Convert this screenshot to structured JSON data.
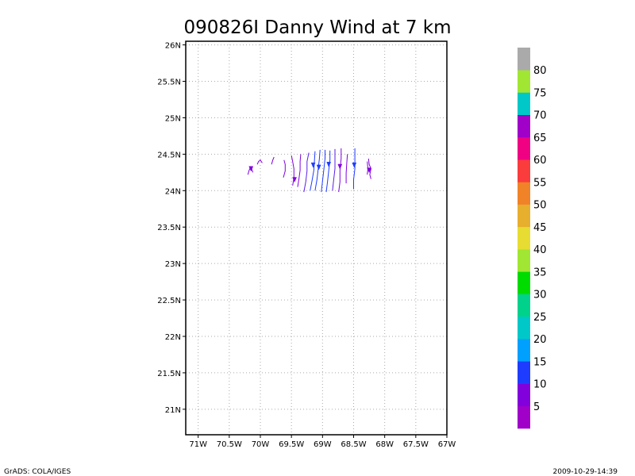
{
  "chart_data": {
    "type": "streamline",
    "title": "090826I Danny Wind at 7 km",
    "xlabel": "",
    "ylabel": "",
    "xlim": [
      -71.2,
      -67.0
    ],
    "ylim": [
      20.65,
      26.05
    ],
    "x_ticks": [
      {
        "value": -71.0,
        "label": "71W"
      },
      {
        "value": -70.5,
        "label": "70.5W"
      },
      {
        "value": -70.0,
        "label": "70W"
      },
      {
        "value": -69.5,
        "label": "69.5W"
      },
      {
        "value": -69.0,
        "label": "69W"
      },
      {
        "value": -68.5,
        "label": "68.5W"
      },
      {
        "value": -68.0,
        "label": "68W"
      },
      {
        "value": -67.5,
        "label": "67.5W"
      },
      {
        "value": -67.0,
        "label": "67W"
      }
    ],
    "y_ticks": [
      {
        "value": 21.0,
        "label": "21N"
      },
      {
        "value": 21.5,
        "label": "21.5N"
      },
      {
        "value": 22.0,
        "label": "22N"
      },
      {
        "value": 22.5,
        "label": "22.5N"
      },
      {
        "value": 23.0,
        "label": "23N"
      },
      {
        "value": 23.5,
        "label": "23.5N"
      },
      {
        "value": 24.0,
        "label": "24N"
      },
      {
        "value": 24.5,
        "label": "24.5N"
      },
      {
        "value": 25.0,
        "label": "25N"
      },
      {
        "value": 25.5,
        "label": "25.5N"
      },
      {
        "value": 26.0,
        "label": "26N"
      }
    ],
    "grid": true,
    "colorbar": {
      "bins": [
        {
          "color": "#a000c8",
          "label": "5"
        },
        {
          "color": "#8200dc",
          "label": "10"
        },
        {
          "color": "#1e3cff",
          "label": "15"
        },
        {
          "color": "#00a0ff",
          "label": "20"
        },
        {
          "color": "#00c8c8",
          "label": "25"
        },
        {
          "color": "#00d28c",
          "label": "30"
        },
        {
          "color": "#00dc00",
          "label": "35"
        },
        {
          "color": "#a0e632",
          "label": "40"
        },
        {
          "color": "#e6dc32",
          "label": "45"
        },
        {
          "color": "#e6af2d",
          "label": "50"
        },
        {
          "color": "#f08228",
          "label": "55"
        },
        {
          "color": "#fa3c3c",
          "label": "60"
        },
        {
          "color": "#f00082",
          "label": "65"
        },
        {
          "color": "#a000c8",
          "label": "70"
        },
        {
          "color": "#00c8c8",
          "label": "75"
        },
        {
          "color": "#a0e632",
          "label": "80"
        },
        {
          "color": "#aaaaaa",
          "label": ""
        }
      ]
    },
    "streamlines": [
      {
        "color": "#8200dc",
        "points": [
          [
            -70.12,
            24.25
          ],
          [
            -70.14,
            24.3
          ],
          [
            -70.16,
            24.32
          ],
          [
            -70.18,
            24.28
          ],
          [
            -70.2,
            24.22
          ]
        ]
      },
      {
        "color": "#8200dc",
        "points": [
          [
            -70.05,
            24.36
          ],
          [
            -70.03,
            24.4
          ],
          [
            -70.0,
            24.42
          ],
          [
            -69.97,
            24.38
          ]
        ]
      },
      {
        "color": "#8200dc",
        "points": [
          [
            -69.82,
            24.36
          ],
          [
            -69.8,
            24.42
          ],
          [
            -69.78,
            24.46
          ]
        ]
      },
      {
        "color": "#8200dc",
        "points": [
          [
            -69.62,
            24.42
          ],
          [
            -69.6,
            24.36
          ],
          [
            -69.6,
            24.27
          ],
          [
            -69.63,
            24.18
          ]
        ]
      },
      {
        "color": "#8200dc",
        "points": [
          [
            -69.5,
            24.48
          ],
          [
            -69.48,
            24.4
          ],
          [
            -69.46,
            24.3
          ],
          [
            -69.46,
            24.18
          ],
          [
            -69.48,
            24.07
          ]
        ]
      },
      {
        "color": "#8200dc",
        "points": [
          [
            -69.35,
            24.5
          ],
          [
            -69.36,
            24.4
          ],
          [
            -69.36,
            24.28
          ],
          [
            -69.38,
            24.16
          ],
          [
            -69.4,
            24.05
          ]
        ]
      },
      {
        "color": "#5a1ee6",
        "points": [
          [
            -69.22,
            24.52
          ],
          [
            -69.25,
            24.4
          ],
          [
            -69.25,
            24.27
          ],
          [
            -69.27,
            24.12
          ],
          [
            -69.3,
            23.98
          ]
        ]
      },
      {
        "color": "#1e3cff",
        "points": [
          [
            -69.12,
            24.54
          ],
          [
            -69.13,
            24.42
          ],
          [
            -69.14,
            24.28
          ],
          [
            -69.17,
            24.13
          ],
          [
            -69.2,
            24.0
          ]
        ]
      },
      {
        "color": "#1e3cff",
        "points": [
          [
            -69.04,
            24.56
          ],
          [
            -69.05,
            24.44
          ],
          [
            -69.07,
            24.3
          ],
          [
            -69.09,
            24.15
          ],
          [
            -69.12,
            24.0
          ]
        ]
      },
      {
        "color": "#1e3cff",
        "points": [
          [
            -68.96,
            24.56
          ],
          [
            -68.96,
            24.44
          ],
          [
            -68.98,
            24.28
          ],
          [
            -69.0,
            24.13
          ],
          [
            -69.02,
            23.98
          ]
        ]
      },
      {
        "color": "#1e3cff",
        "points": [
          [
            -68.88,
            24.55
          ],
          [
            -68.88,
            24.42
          ],
          [
            -68.9,
            24.28
          ],
          [
            -68.92,
            24.12
          ],
          [
            -68.94,
            23.98
          ]
        ]
      },
      {
        "color": "#5a1ee6",
        "points": [
          [
            -68.8,
            24.57
          ],
          [
            -68.8,
            24.44
          ],
          [
            -68.8,
            24.3
          ],
          [
            -68.82,
            24.15
          ],
          [
            -68.84,
            24.0
          ]
        ]
      },
      {
        "color": "#8200dc",
        "points": [
          [
            -68.7,
            24.58
          ],
          [
            -68.7,
            24.44
          ],
          [
            -68.72,
            24.28
          ],
          [
            -68.72,
            24.12
          ],
          [
            -68.74,
            23.98
          ]
        ]
      },
      {
        "color": "#8200dc",
        "points": [
          [
            -68.6,
            24.5
          ],
          [
            -68.61,
            24.38
          ],
          [
            -68.62,
            24.24
          ],
          [
            -68.62,
            24.1
          ]
        ]
      },
      {
        "color": "#1e3cff",
        "points": [
          [
            -68.48,
            24.58
          ],
          [
            -68.48,
            24.44
          ],
          [
            -68.48,
            24.3
          ],
          [
            -68.5,
            24.15
          ],
          [
            -68.5,
            24.02
          ]
        ]
      },
      {
        "color": "#8200dc",
        "points": [
          [
            -68.26,
            24.44
          ],
          [
            -68.25,
            24.36
          ],
          [
            -68.22,
            24.3
          ],
          [
            -68.24,
            24.22
          ],
          [
            -68.22,
            24.16
          ]
        ]
      },
      {
        "color": "#8200dc",
        "points": [
          [
            -68.28,
            24.4
          ],
          [
            -68.27,
            24.3
          ],
          [
            -68.28,
            24.22
          ]
        ]
      }
    ],
    "arrowheads": [
      {
        "color": "#8200dc",
        "lon": -70.15,
        "lat": 24.3,
        "dir": "down"
      },
      {
        "color": "#8200dc",
        "lon": -69.45,
        "lat": 24.15,
        "dir": "down"
      },
      {
        "color": "#1e3cff",
        "lon": -69.15,
        "lat": 24.35,
        "dir": "down"
      },
      {
        "color": "#1e3cff",
        "lon": -69.06,
        "lat": 24.32,
        "dir": "down"
      },
      {
        "color": "#1e3cff",
        "lon": -68.9,
        "lat": 24.36,
        "dir": "down"
      },
      {
        "color": "#8200dc",
        "lon": -68.72,
        "lat": 24.33,
        "dir": "down"
      },
      {
        "color": "#1e3cff",
        "lon": -68.49,
        "lat": 24.35,
        "dir": "down"
      },
      {
        "color": "#8200dc",
        "lon": -68.25,
        "lat": 24.28,
        "dir": "down"
      }
    ]
  },
  "footer": {
    "left": "GrADS: COLA/IGES",
    "right": "2009-10-29-14:39"
  }
}
